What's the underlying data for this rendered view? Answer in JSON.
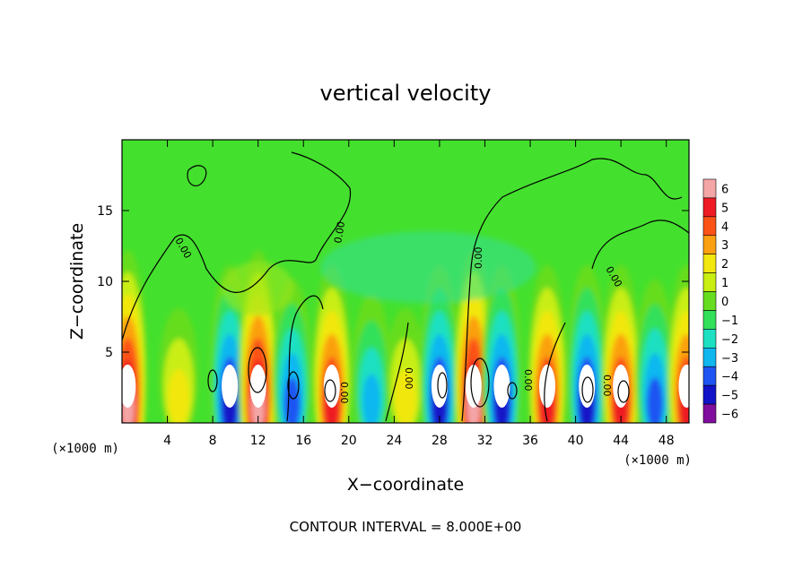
{
  "chart_data": {
    "type": "heatmap",
    "title": "vertical velocity",
    "xlabel": "X−coordinate",
    "ylabel": "Z−coordinate",
    "x_unit_left": "(×1000 m)",
    "x_unit_right": "(×1000 m)",
    "xlim": [
      0,
      50
    ],
    "ylim": [
      0,
      20
    ],
    "x_ticks": [
      4,
      8,
      12,
      16,
      20,
      24,
      28,
      32,
      36,
      40,
      44,
      48
    ],
    "y_ticks": [
      5,
      10,
      15
    ],
    "colorbar": {
      "levels": [
        6,
        5,
        4,
        3,
        2,
        1,
        0,
        -1,
        -2,
        -3,
        -4,
        -5,
        -6
      ],
      "labels": [
        "6",
        "5",
        "4",
        "3",
        "2",
        "1",
        "0",
        "−1",
        "−2",
        "−3",
        "−4",
        "−5",
        "−6"
      ],
      "colors": [
        "#f4a6a6",
        "#ee1b24",
        "#fb5216",
        "#fba010",
        "#f2e70f",
        "#c8ee12",
        "#66dd1e",
        "#33e05a",
        "#1ce0c1",
        "#10b7ef",
        "#1e55f2",
        "#1212c8",
        "#800d9e"
      ]
    },
    "contour_label": "0.00",
    "contour_interval_text": "CONTOUR INTERVAL = 8.000E+00",
    "background_color": "#44e02e",
    "updraft_cores_x": [
      0.5,
      5,
      9.5,
      12,
      15,
      18.5,
      22,
      25,
      28,
      31,
      33.5,
      37.5,
      41,
      44,
      47,
      49.8
    ],
    "updraft_values": [
      6,
      2,
      -5,
      6,
      -4,
      5,
      -3,
      2,
      -5,
      6,
      -5,
      5,
      -5,
      5,
      -4,
      5
    ]
  }
}
